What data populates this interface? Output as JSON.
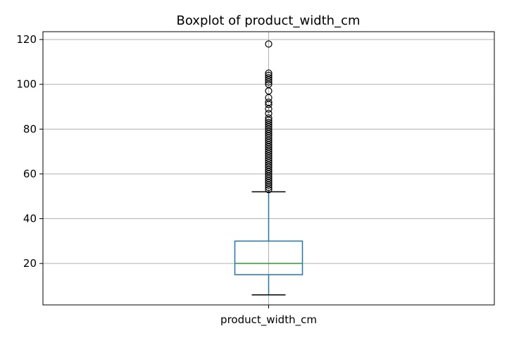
{
  "chart_data": {
    "type": "box",
    "title": "Boxplot of product_width_cm",
    "xlabel": "",
    "ylabel": "",
    "categories": [
      "product_width_cm"
    ],
    "ylim": [
      1.5,
      123.5
    ],
    "yticks": [
      20,
      40,
      60,
      80,
      100,
      120
    ],
    "grid": true,
    "colors": {
      "box": "#1f77b4",
      "median": "#2ca02c",
      "whisker": "#1f77b4",
      "cap": "#000000",
      "flier": "#000000",
      "grid": "#b0b0b0"
    },
    "boxes": [
      {
        "name": "product_width_cm",
        "q1": 15,
        "median": 20,
        "q3": 30,
        "whisker_low": 6,
        "whisker_high": 52,
        "outliers": [
          53,
          54,
          55,
          56,
          57,
          58,
          59,
          60,
          61,
          62,
          63,
          64,
          65,
          66,
          67,
          68,
          69,
          70,
          71,
          72,
          73,
          74,
          75,
          76,
          77,
          78,
          79,
          80,
          81,
          82,
          83,
          84,
          85,
          87,
          89,
          91,
          92,
          94,
          97,
          100,
          101,
          102,
          103,
          104,
          105,
          118
        ]
      }
    ]
  }
}
